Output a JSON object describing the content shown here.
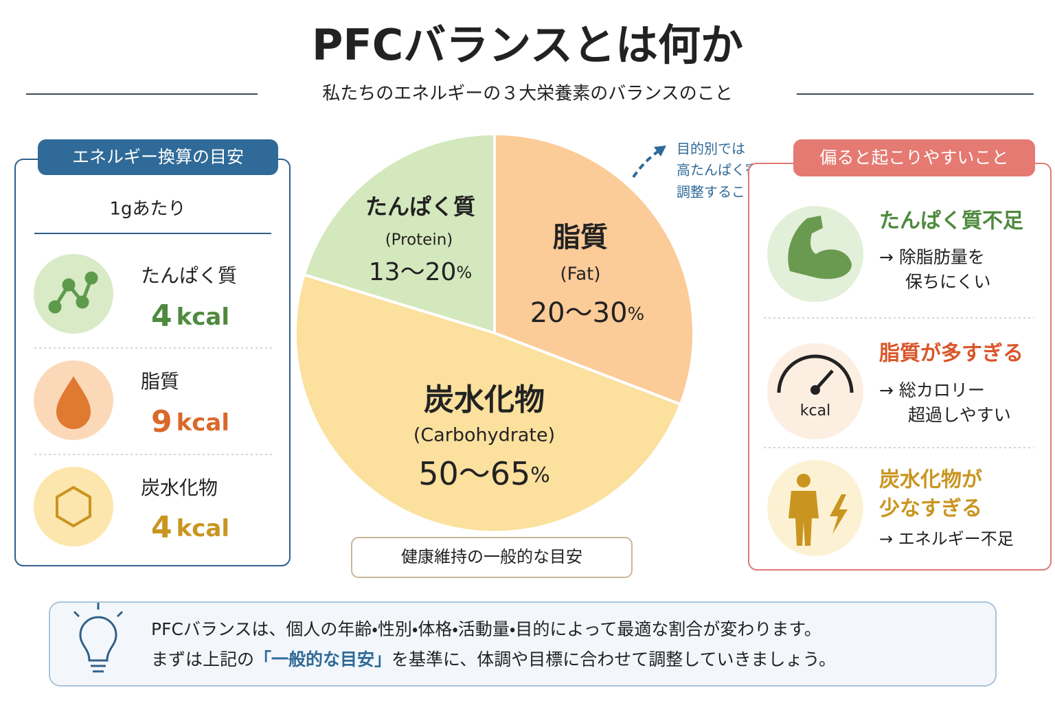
{
  "header": {
    "title": "PFCバランスとは何か",
    "subtitle": "私たちのエネルギーの３大栄養素のバランスのこと"
  },
  "energy_panel": {
    "title": "エネルギー換算の目安",
    "unit_note": "1gあたり",
    "items": [
      {
        "name": "たんぱく質",
        "value": 4,
        "unit": "kcal"
      },
      {
        "name": "脂質",
        "value": 9,
        "unit": "kcal"
      },
      {
        "name": "炭水化物",
        "value": 4,
        "unit": "kcal"
      }
    ]
  },
  "pie": {
    "slices": [
      {
        "name": "たんぱく質",
        "english": "(Protein)",
        "range": "13〜20",
        "unit": "%"
      },
      {
        "name": "脂質",
        "english": "(Fat)",
        "range": "20〜30",
        "unit": "%"
      },
      {
        "name": "炭水化物",
        "english": "(Carbohydrate)",
        "range": "50〜65",
        "unit": "%"
      }
    ],
    "caption": "健康維持の一般的な目安",
    "note": [
      "目的別では",
      "高たんぱく寄りに",
      "調整することも"
    ]
  },
  "risks": {
    "title": "偏ると起こりやすいこと",
    "items": [
      {
        "title": [
          "たんぱく質不足"
        ],
        "desc": [
          "→ 除脂肪量を",
          "保ちにくい"
        ]
      },
      {
        "title": [
          "脂質が多すぎる"
        ],
        "icon_label": "kcal",
        "desc": [
          "→ 総カロリー",
          "超過しやすい"
        ]
      },
      {
        "title": [
          "炭水化物が",
          "少なすぎる"
        ],
        "desc": [
          "→ エネルギー不足"
        ]
      }
    ]
  },
  "footer": {
    "line1": "PFCバランスは、個人の年齢・性別・体格・活動量・目的によって最適な割合が変わります。",
    "line2": [
      "まずは上記の",
      "「一般的な目安」",
      "を基準に、体調や目標に合わせて調整していきましょう。"
    ]
  }
}
